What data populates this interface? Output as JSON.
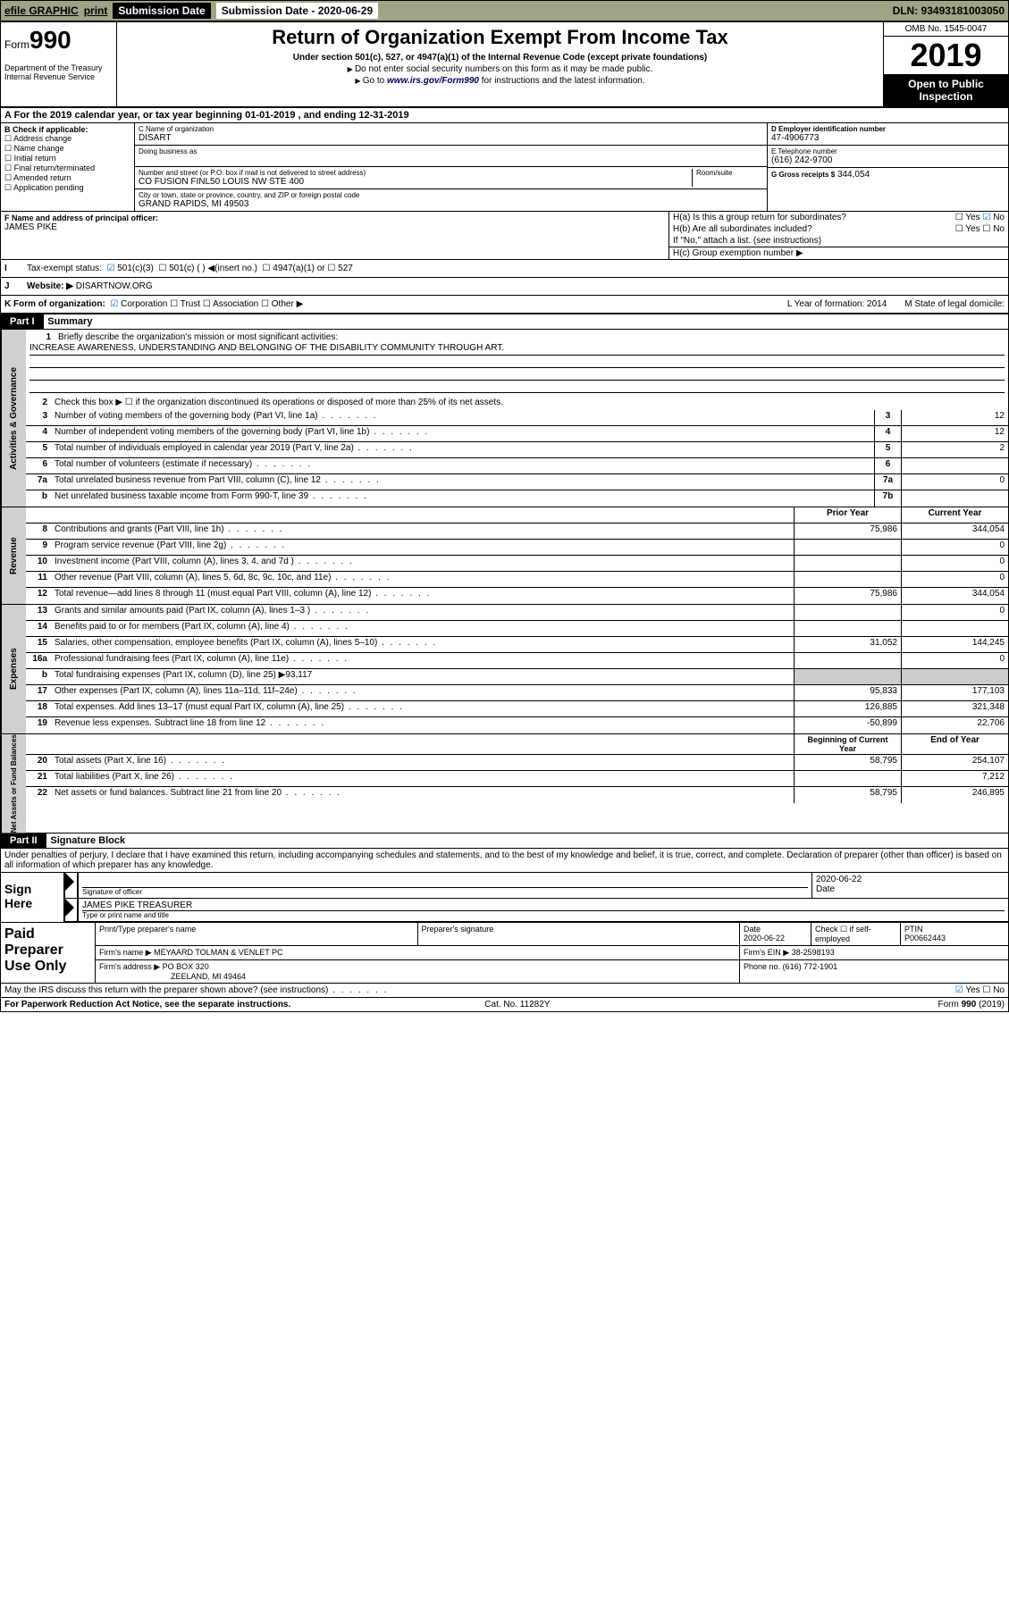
{
  "topbar": {
    "efile": "efile GRAPHIC",
    "print": "print",
    "sub_label": "Submission Date - 2020-06-29",
    "dln": "DLN: 93493181003050"
  },
  "header": {
    "form_word": "Form",
    "form_num": "990",
    "title": "Return of Organization Exempt From Income Tax",
    "under": "Under section 501(c), 527, or 4947(a)(1) of the Internal Revenue Code (except private foundations)",
    "note1": "Do not enter social security numbers on this form as it may be made public.",
    "note2_pre": "Go to ",
    "note2_link": "www.irs.gov/Form990",
    "note2_post": " for instructions and the latest information.",
    "dept": "Department of the Treasury\nInternal Revenue Service",
    "omb": "OMB No. 1545-0047",
    "year": "2019",
    "open": "Open to Public Inspection"
  },
  "row_a": "For the 2019 calendar year, or tax year beginning 01-01-2019   , and ending 12-31-2019",
  "box_b": {
    "label": "B Check if applicable:",
    "items": [
      "Address change",
      "Name change",
      "Initial return",
      "Final return/terminated",
      "Amended return",
      "Application pending"
    ]
  },
  "box_c": {
    "name_lbl": "C Name of organization",
    "name": "DISART",
    "dba_lbl": "Doing business as",
    "addr_lbl": "Number and street (or P.O. box if mail is not delivered to street address)",
    "room_lbl": "Room/suite",
    "addr": "CO FUSION FINL50 LOUIS NW STE 400",
    "city_lbl": "City or town, state or province, country, and ZIP or foreign postal code",
    "city": "GRAND RAPIDS, MI  49503"
  },
  "box_d": {
    "lbl": "D Employer identification number",
    "val": "47-4906773"
  },
  "box_e": {
    "lbl": "E Telephone number",
    "val": "(616) 242-9700"
  },
  "box_g": {
    "lbl": "G Gross receipts $",
    "val": "344,054"
  },
  "box_f": {
    "lbl": "F  Name and address of principal officer:",
    "val": "JAMES PIKE"
  },
  "box_h": {
    "a": "H(a)  Is this a group return for subordinates?",
    "b": "H(b)  Are all subordinates included?",
    "b_note": "If \"No,\" attach a list. (see instructions)",
    "c": "H(c)  Group exemption number ▶",
    "yes": "Yes",
    "no": "No"
  },
  "row_i": {
    "lbl": "Tax-exempt status:",
    "o1": "501(c)(3)",
    "o2": "501(c) (  ) ◀(insert no.)",
    "o3": "4947(a)(1) or",
    "o4": "527"
  },
  "row_j": {
    "lbl": "Website: ▶",
    "val": "DISARTNOW.ORG"
  },
  "row_k": {
    "lbl": "K Form of organization:",
    "o1": "Corporation",
    "o2": "Trust",
    "o3": "Association",
    "o4": "Other ▶",
    "l": "L Year of formation: 2014",
    "m": "M State of legal domicile:"
  },
  "part1": {
    "hdr": "Part I",
    "title": "Summary"
  },
  "governance": {
    "label": "Activities & Governance",
    "q1": "Briefly describe the organization's mission or most significant activities:",
    "mission": "INCREASE AWARENESS, UNDERSTANDING AND BELONGING OF THE DISABILITY COMMUNITY THROUGH ART.",
    "q2": "Check this box ▶ ☐  if the organization discontinued its operations or disposed of more than 25% of its net assets.",
    "rows": [
      {
        "n": "3",
        "t": "Number of voting members of the governing body (Part VI, line 1a)",
        "b": "3",
        "v": "12"
      },
      {
        "n": "4",
        "t": "Number of independent voting members of the governing body (Part VI, line 1b)",
        "b": "4",
        "v": "12"
      },
      {
        "n": "5",
        "t": "Total number of individuals employed in calendar year 2019 (Part V, line 2a)",
        "b": "5",
        "v": "2"
      },
      {
        "n": "6",
        "t": "Total number of volunteers (estimate if necessary)",
        "b": "6",
        "v": ""
      },
      {
        "n": "7a",
        "t": "Total unrelated business revenue from Part VIII, column (C), line 12",
        "b": "7a",
        "v": "0"
      },
      {
        "n": "b",
        "t": "Net unrelated business taxable income from Form 990-T, line 39",
        "b": "7b",
        "v": ""
      }
    ]
  },
  "revenue": {
    "label": "Revenue",
    "hdr_prior": "Prior Year",
    "hdr_curr": "Current Year",
    "rows": [
      {
        "n": "8",
        "t": "Contributions and grants (Part VIII, line 1h)",
        "p": "75,986",
        "c": "344,054"
      },
      {
        "n": "9",
        "t": "Program service revenue (Part VIII, line 2g)",
        "p": "",
        "c": "0"
      },
      {
        "n": "10",
        "t": "Investment income (Part VIII, column (A), lines 3, 4, and 7d )",
        "p": "",
        "c": "0"
      },
      {
        "n": "11",
        "t": "Other revenue (Part VIII, column (A), lines 5, 6d, 8c, 9c, 10c, and 11e)",
        "p": "",
        "c": "0"
      },
      {
        "n": "12",
        "t": "Total revenue—add lines 8 through 11 (must equal Part VIII, column (A), line 12)",
        "p": "75,986",
        "c": "344,054"
      }
    ]
  },
  "expenses": {
    "label": "Expenses",
    "rows": [
      {
        "n": "13",
        "t": "Grants and similar amounts paid (Part IX, column (A), lines 1–3 )",
        "p": "",
        "c": "0"
      },
      {
        "n": "14",
        "t": "Benefits paid to or for members (Part IX, column (A), line 4)",
        "p": "",
        "c": ""
      },
      {
        "n": "15",
        "t": "Salaries, other compensation, employee benefits (Part IX, column (A), lines 5–10)",
        "p": "31,052",
        "c": "144,245"
      },
      {
        "n": "16a",
        "t": "Professional fundraising fees (Part IX, column (A), line 11e)",
        "p": "",
        "c": "0"
      },
      {
        "n": "b",
        "t": "Total fundraising expenses (Part IX, column (D), line 25) ▶93,117",
        "p": null,
        "c": null
      },
      {
        "n": "17",
        "t": "Other expenses (Part IX, column (A), lines 11a–11d, 11f–24e)",
        "p": "95,833",
        "c": "177,103"
      },
      {
        "n": "18",
        "t": "Total expenses. Add lines 13–17 (must equal Part IX, column (A), line 25)",
        "p": "126,885",
        "c": "321,348"
      },
      {
        "n": "19",
        "t": "Revenue less expenses. Subtract line 18 from line 12",
        "p": "-50,899",
        "c": "22,706"
      }
    ]
  },
  "netassets": {
    "label": "Net Assets or Fund Balances",
    "hdr_prior": "Beginning of Current Year",
    "hdr_curr": "End of Year",
    "rows": [
      {
        "n": "20",
        "t": "Total assets (Part X, line 16)",
        "p": "58,795",
        "c": "254,107"
      },
      {
        "n": "21",
        "t": "Total liabilities (Part X, line 26)",
        "p": "",
        "c": "7,212"
      },
      {
        "n": "22",
        "t": "Net assets or fund balances. Subtract line 21 from line 20",
        "p": "58,795",
        "c": "246,895"
      }
    ]
  },
  "part2": {
    "hdr": "Part II",
    "title": "Signature Block"
  },
  "perjury": "Under penalties of perjury, I declare that I have examined this return, including accompanying schedules and statements, and to the best of my knowledge and belief, it is true, correct, and complete. Declaration of preparer (other than officer) is based on all information of which preparer has any knowledge.",
  "sign": {
    "here": "Sign Here",
    "sig_lbl": "Signature of officer",
    "date": "2020-06-22",
    "date_lbl": "Date",
    "name": "JAMES PIKE TREASURER",
    "name_lbl": "Type or print name and title"
  },
  "paid": {
    "title": "Paid Preparer Use Only",
    "prep_lbl": "Print/Type preparer's name",
    "sig_lbl": "Preparer's signature",
    "date_lbl": "Date",
    "date": "2020-06-22",
    "check_lbl": "Check ☐ if self-employed",
    "ptin_lbl": "PTIN",
    "ptin": "P00662443",
    "firm_name_lbl": "Firm's name    ▶",
    "firm_name": "MEYAARD TOLMAN & VENLET PC",
    "firm_ein_lbl": "Firm's EIN ▶",
    "firm_ein": "38-2598193",
    "firm_addr_lbl": "Firm's address ▶",
    "firm_addr": "PO BOX 320",
    "firm_city": "ZEELAND, MI  49464",
    "phone_lbl": "Phone no.",
    "phone": "(616) 772-1901"
  },
  "discuss": "May the IRS discuss this return with the preparer shown above? (see instructions)",
  "foot": {
    "l": "For Paperwork Reduction Act Notice, see the separate instructions.",
    "c": "Cat. No. 11282Y",
    "r": "Form 990 (2019)"
  }
}
